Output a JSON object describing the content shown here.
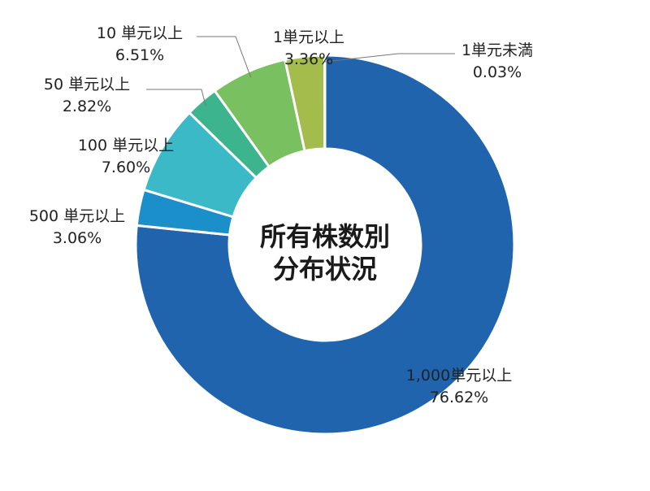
{
  "chart_data": {
    "type": "pie",
    "title_lines": [
      "所有株数別",
      "分布状況"
    ],
    "slices": [
      {
        "label": "1,000単元以上",
        "value": 76.62,
        "display": "76.62%",
        "color": "#1f64ad"
      },
      {
        "label": "500 単元以上",
        "value": 3.06,
        "display": "3.06%",
        "color": "#1b8fc9"
      },
      {
        "label": "100 単元以上",
        "value": 7.6,
        "display": "7.60%",
        "color": "#3cb9c6"
      },
      {
        "label": "50 単元以上",
        "value": 2.82,
        "display": "2.82%",
        "color": "#3cb58e"
      },
      {
        "label": "10 単元以上",
        "value": 6.51,
        "display": "6.51%",
        "color": "#78c060"
      },
      {
        "label": "1単元以上",
        "value": 3.36,
        "display": "3.36%",
        "color": "#a4bc4c"
      },
      {
        "label": "1単元未満",
        "value": 0.03,
        "display": "0.03%",
        "color": "#c8d860"
      }
    ]
  }
}
